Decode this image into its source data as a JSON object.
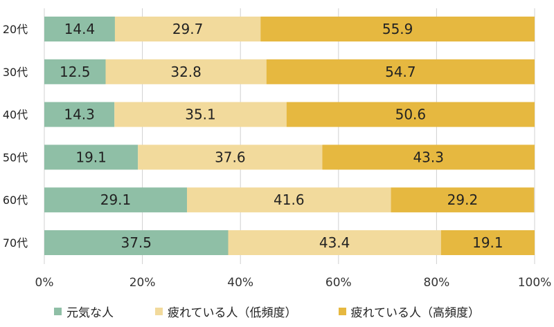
{
  "chart_data": {
    "type": "bar",
    "orientation": "horizontal",
    "stacked": true,
    "categories": [
      "20代",
      "30代",
      "40代",
      "50代",
      "60代",
      "70代"
    ],
    "series": [
      {
        "name": "元気な人",
        "color": "#8fbfa6",
        "values": [
          14.4,
          12.5,
          14.3,
          19.1,
          29.1,
          37.5
        ]
      },
      {
        "name": "疲れている人（低頻度）",
        "color": "#f2da9c",
        "values": [
          29.7,
          32.8,
          35.1,
          37.6,
          41.6,
          43.4
        ]
      },
      {
        "name": "疲れている人（高頻度）",
        "color": "#e6b840",
        "values": [
          55.9,
          54.7,
          50.6,
          43.3,
          29.2,
          19.1
        ]
      }
    ],
    "x_ticks": [
      "0%",
      "20%",
      "40%",
      "60%",
      "80%",
      "100%"
    ],
    "xlim": [
      0,
      100
    ],
    "grid": "vertical",
    "legend_position": "bottom"
  }
}
